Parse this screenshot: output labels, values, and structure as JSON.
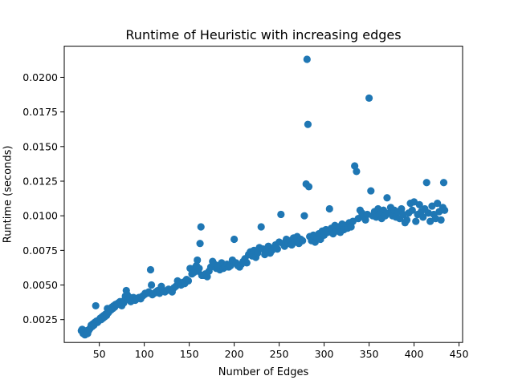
{
  "chart_data": {
    "type": "scatter",
    "title": "Runtime of Heuristic with increasing edges",
    "xlabel": "Number of Edges",
    "ylabel": "Runtime (seconds)",
    "xlim": [
      11,
      454
    ],
    "ylim": [
      0.00085,
      0.02225
    ],
    "xticks": [
      50,
      100,
      150,
      200,
      250,
      300,
      350,
      400,
      450
    ],
    "xtick_labels": [
      "50",
      "100",
      "150",
      "200",
      "250",
      "300",
      "350",
      "400",
      "450"
    ],
    "yticks": [
      0.0025,
      0.005,
      0.0075,
      0.01,
      0.0125,
      0.015,
      0.0175,
      0.02
    ],
    "ytick_labels": [
      "0.0025",
      "0.0050",
      "0.0075",
      "0.0100",
      "0.0125",
      "0.0150",
      "0.0175",
      "0.0200"
    ],
    "grid": false,
    "marker_color": "#1f77b4",
    "series": [
      {
        "name": "runtime",
        "points": [
          [
            30,
            0.0017
          ],
          [
            31,
            0.0018
          ],
          [
            32,
            0.0015
          ],
          [
            33,
            0.0016
          ],
          [
            34,
            0.0014
          ],
          [
            35,
            0.0016
          ],
          [
            36,
            0.0017
          ],
          [
            37,
            0.0015
          ],
          [
            38,
            0.0017
          ],
          [
            39,
            0.0018
          ],
          [
            40,
            0.0019
          ],
          [
            41,
            0.0021
          ],
          [
            42,
            0.002
          ],
          [
            43,
            0.0022
          ],
          [
            44,
            0.0021
          ],
          [
            45,
            0.0023
          ],
          [
            46,
            0.0035
          ],
          [
            47,
            0.0024
          ],
          [
            48,
            0.0023
          ],
          [
            49,
            0.0024
          ],
          [
            50,
            0.0025
          ],
          [
            51,
            0.0026
          ],
          [
            52,
            0.0025
          ],
          [
            53,
            0.0027
          ],
          [
            54,
            0.0026
          ],
          [
            55,
            0.0028
          ],
          [
            56,
            0.0027
          ],
          [
            57,
            0.0029
          ],
          [
            58,
            0.0028
          ],
          [
            59,
            0.0033
          ],
          [
            60,
            0.003
          ],
          [
            61,
            0.0031
          ],
          [
            62,
            0.0033
          ],
          [
            63,
            0.0032
          ],
          [
            64,
            0.0034
          ],
          [
            65,
            0.0033
          ],
          [
            66,
            0.0035
          ],
          [
            67,
            0.0034
          ],
          [
            68,
            0.0036
          ],
          [
            69,
            0.0036
          ],
          [
            70,
            0.0036
          ],
          [
            71,
            0.0037
          ],
          [
            72,
            0.0036
          ],
          [
            73,
            0.0038
          ],
          [
            74,
            0.0037
          ],
          [
            75,
            0.0035
          ],
          [
            76,
            0.0038
          ],
          [
            77,
            0.0037
          ],
          [
            78,
            0.0039
          ],
          [
            79,
            0.0042
          ],
          [
            80,
            0.0046
          ],
          [
            81,
            0.0043
          ],
          [
            82,
            0.004
          ],
          [
            84,
            0.0041
          ],
          [
            85,
            0.0038
          ],
          [
            87,
            0.0039
          ],
          [
            88,
            0.0041
          ],
          [
            90,
            0.0039
          ],
          [
            92,
            0.004
          ],
          [
            94,
            0.0041
          ],
          [
            96,
            0.004
          ],
          [
            98,
            0.0042
          ],
          [
            100,
            0.0043
          ],
          [
            101,
            0.0044
          ],
          [
            103,
            0.0044
          ],
          [
            105,
            0.0045
          ],
          [
            107,
            0.0061
          ],
          [
            108,
            0.005
          ],
          [
            109,
            0.0043
          ],
          [
            111,
            0.0044
          ],
          [
            113,
            0.0045
          ],
          [
            115,
            0.0046
          ],
          [
            117,
            0.0044
          ],
          [
            119,
            0.0049
          ],
          [
            121,
            0.0046
          ],
          [
            123,
            0.0045
          ],
          [
            125,
            0.0046
          ],
          [
            127,
            0.0047
          ],
          [
            129,
            0.0046
          ],
          [
            131,
            0.0045
          ],
          [
            133,
            0.0048
          ],
          [
            135,
            0.0049
          ],
          [
            137,
            0.0053
          ],
          [
            139,
            0.0051
          ],
          [
            141,
            0.005
          ],
          [
            143,
            0.0052
          ],
          [
            145,
            0.0051
          ],
          [
            147,
            0.0054
          ],
          [
            149,
            0.0053
          ],
          [
            151,
            0.0062
          ],
          [
            153,
            0.0058
          ],
          [
            155,
            0.0059
          ],
          [
            157,
            0.0063
          ],
          [
            158,
            0.0064
          ],
          [
            159,
            0.0068
          ],
          [
            160,
            0.006
          ],
          [
            161,
            0.0062
          ],
          [
            162,
            0.008
          ],
          [
            163,
            0.0092
          ],
          [
            164,
            0.0057
          ],
          [
            166,
            0.0057
          ],
          [
            168,
            0.0058
          ],
          [
            170,
            0.0056
          ],
          [
            172,
            0.006
          ],
          [
            174,
            0.0063
          ],
          [
            176,
            0.0067
          ],
          [
            178,
            0.0065
          ],
          [
            180,
            0.0062
          ],
          [
            182,
            0.0064
          ],
          [
            184,
            0.0061
          ],
          [
            186,
            0.0066
          ],
          [
            188,
            0.0062
          ],
          [
            190,
            0.0063
          ],
          [
            192,
            0.0065
          ],
          [
            194,
            0.0063
          ],
          [
            196,
            0.0064
          ],
          [
            198,
            0.0068
          ],
          [
            200,
            0.0083
          ],
          [
            202,
            0.0066
          ],
          [
            204,
            0.0064
          ],
          [
            206,
            0.0063
          ],
          [
            208,
            0.0065
          ],
          [
            210,
            0.0067
          ],
          [
            212,
            0.0069
          ],
          [
            214,
            0.0066
          ],
          [
            216,
            0.0072
          ],
          [
            218,
            0.0074
          ],
          [
            220,
            0.0071
          ],
          [
            222,
            0.0075
          ],
          [
            224,
            0.007
          ],
          [
            226,
            0.0073
          ],
          [
            228,
            0.0077
          ],
          [
            230,
            0.0092
          ],
          [
            232,
            0.0076
          ],
          [
            234,
            0.0072
          ],
          [
            236,
            0.0074
          ],
          [
            238,
            0.0078
          ],
          [
            240,
            0.0073
          ],
          [
            242,
            0.0075
          ],
          [
            244,
            0.0077
          ],
          [
            246,
            0.0079
          ],
          [
            248,
            0.0076
          ],
          [
            250,
            0.0081
          ],
          [
            252,
            0.0101
          ],
          [
            254,
            0.008
          ],
          [
            256,
            0.0078
          ],
          [
            258,
            0.0083
          ],
          [
            260,
            0.008
          ],
          [
            262,
            0.0082
          ],
          [
            264,
            0.0079
          ],
          [
            266,
            0.0084
          ],
          [
            268,
            0.0081
          ],
          [
            270,
            0.0085
          ],
          [
            272,
            0.008
          ],
          [
            274,
            0.0083
          ],
          [
            276,
            0.0082
          ],
          [
            278,
            0.01
          ],
          [
            280,
            0.0123
          ],
          [
            281,
            0.0213
          ],
          [
            282,
            0.0166
          ],
          [
            283,
            0.0121
          ],
          [
            284,
            0.0085
          ],
          [
            286,
            0.0082
          ],
          [
            288,
            0.0086
          ],
          [
            290,
            0.0081
          ],
          [
            292,
            0.0084
          ],
          [
            294,
            0.0087
          ],
          [
            296,
            0.0083
          ],
          [
            298,
            0.0089
          ],
          [
            300,
            0.0086
          ],
          [
            302,
            0.009
          ],
          [
            304,
            0.0088
          ],
          [
            306,
            0.0105
          ],
          [
            308,
            0.0091
          ],
          [
            310,
            0.0087
          ],
          [
            312,
            0.0093
          ],
          [
            314,
            0.0089
          ],
          [
            316,
            0.0092
          ],
          [
            318,
            0.0088
          ],
          [
            320,
            0.0094
          ],
          [
            322,
            0.009
          ],
          [
            324,
            0.0093
          ],
          [
            326,
            0.0091
          ],
          [
            328,
            0.0095
          ],
          [
            330,
            0.0092
          ],
          [
            332,
            0.0096
          ],
          [
            334,
            0.0136
          ],
          [
            336,
            0.0132
          ],
          [
            338,
            0.0098
          ],
          [
            340,
            0.0104
          ],
          [
            342,
            0.0102
          ],
          [
            344,
            0.0099
          ],
          [
            346,
            0.0097
          ],
          [
            348,
            0.0101
          ],
          [
            350,
            0.0185
          ],
          [
            352,
            0.0118
          ],
          [
            354,
            0.01
          ],
          [
            356,
            0.0103
          ],
          [
            358,
            0.0099
          ],
          [
            360,
            0.0105
          ],
          [
            362,
            0.0101
          ],
          [
            364,
            0.0098
          ],
          [
            366,
            0.0104
          ],
          [
            368,
            0.01
          ],
          [
            370,
            0.0113
          ],
          [
            372,
            0.0102
          ],
          [
            374,
            0.0106
          ],
          [
            376,
            0.01
          ],
          [
            378,
            0.0104
          ],
          [
            380,
            0.0099
          ],
          [
            382,
            0.0103
          ],
          [
            384,
            0.0098
          ],
          [
            386,
            0.0105
          ],
          [
            388,
            0.0101
          ],
          [
            390,
            0.0095
          ],
          [
            392,
            0.0097
          ],
          [
            394,
            0.0102
          ],
          [
            396,
            0.0109
          ],
          [
            398,
            0.0104
          ],
          [
            400,
            0.011
          ],
          [
            402,
            0.0096
          ],
          [
            404,
            0.0101
          ],
          [
            406,
            0.0108
          ],
          [
            408,
            0.0103
          ],
          [
            410,
            0.0099
          ],
          [
            412,
            0.0105
          ],
          [
            414,
            0.0124
          ],
          [
            416,
            0.0102
          ],
          [
            418,
            0.0096
          ],
          [
            420,
            0.0107
          ],
          [
            422,
            0.0101
          ],
          [
            424,
            0.0098
          ],
          [
            426,
            0.0109
          ],
          [
            428,
            0.0103
          ],
          [
            430,
            0.0097
          ],
          [
            432,
            0.0106
          ],
          [
            433,
            0.0124
          ],
          [
            434,
            0.0104
          ]
        ]
      }
    ]
  }
}
